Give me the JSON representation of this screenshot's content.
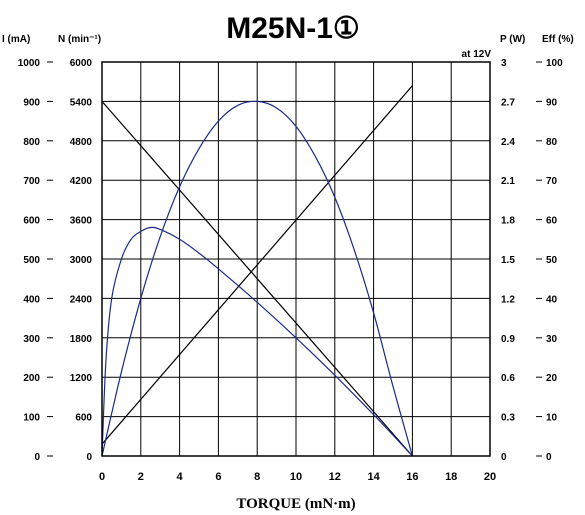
{
  "chart_data": {
    "type": "line",
    "title": "M25N-1①",
    "condition": "at 12V",
    "xlabel": "TORQUE (mN·m)",
    "x_ticks": [
      "0",
      "2",
      "4",
      "6",
      "8",
      "10",
      "12",
      "14",
      "16",
      "18",
      "20"
    ],
    "xlim": [
      0,
      20
    ],
    "grid": true,
    "axes": [
      {
        "id": "I",
        "header": "I (mA)",
        "side": "left",
        "ticks": [
          "0",
          "100",
          "200",
          "300",
          "400",
          "500",
          "600",
          "700",
          "800",
          "900",
          "1000"
        ],
        "lim": [
          0,
          1000
        ]
      },
      {
        "id": "N",
        "header": "N (min⁻¹)",
        "side": "left",
        "ticks": [
          "0",
          "600",
          "1200",
          "1800",
          "2400",
          "3000",
          "3600",
          "4200",
          "4800",
          "5400",
          "6000"
        ],
        "lim": [
          0,
          6000
        ]
      },
      {
        "id": "P",
        "header": "P (W)",
        "side": "right",
        "ticks": [
          "0",
          "0.3",
          "0.6",
          "0.9",
          "1.2",
          "1.5",
          "1.8",
          "2.1",
          "2.4",
          "2.7",
          "3"
        ],
        "lim": [
          0,
          3
        ]
      },
      {
        "id": "Eff",
        "header": "Eff (%)",
        "side": "right",
        "ticks": [
          "0",
          "10",
          "20",
          "30",
          "40",
          "50",
          "60",
          "70",
          "80",
          "90",
          "100"
        ],
        "lim": [
          0,
          100
        ]
      }
    ],
    "series": [
      {
        "axis": "N",
        "kind": "line",
        "color": "#000000",
        "points": [
          [
            0,
            5400
          ],
          [
            16,
            0
          ]
        ]
      },
      {
        "axis": "I",
        "kind": "line",
        "color": "#000000",
        "points": [
          [
            0,
            30
          ],
          [
            16,
            940
          ]
        ]
      },
      {
        "axis": "P",
        "kind": "curve",
        "color": "#1a2a8a",
        "points": [
          [
            0,
            0
          ],
          [
            1,
            0.64
          ],
          [
            2,
            1.2
          ],
          [
            3,
            1.67
          ],
          [
            4,
            2.05
          ],
          [
            5,
            2.34
          ],
          [
            6,
            2.55
          ],
          [
            7,
            2.67
          ],
          [
            8,
            2.7
          ],
          [
            9,
            2.65
          ],
          [
            10,
            2.51
          ],
          [
            11,
            2.28
          ],
          [
            12,
            1.97
          ],
          [
            13,
            1.57
          ],
          [
            14,
            1.09
          ],
          [
            15,
            0.53
          ],
          [
            16,
            0
          ]
        ]
      },
      {
        "axis": "Eff",
        "kind": "curve",
        "color": "#1a2a8a",
        "points": [
          [
            0,
            0
          ],
          [
            0.2,
            24
          ],
          [
            0.5,
            40
          ],
          [
            1,
            50
          ],
          [
            1.5,
            55
          ],
          [
            2,
            57
          ],
          [
            2.5,
            58
          ],
          [
            3,
            57.5
          ],
          [
            4,
            55
          ],
          [
            5,
            51.5
          ],
          [
            6,
            47.5
          ],
          [
            8,
            39
          ],
          [
            10,
            30
          ],
          [
            12,
            20.5
          ],
          [
            14,
            10.5
          ],
          [
            15,
            5.3
          ],
          [
            16,
            0
          ]
        ]
      }
    ]
  }
}
